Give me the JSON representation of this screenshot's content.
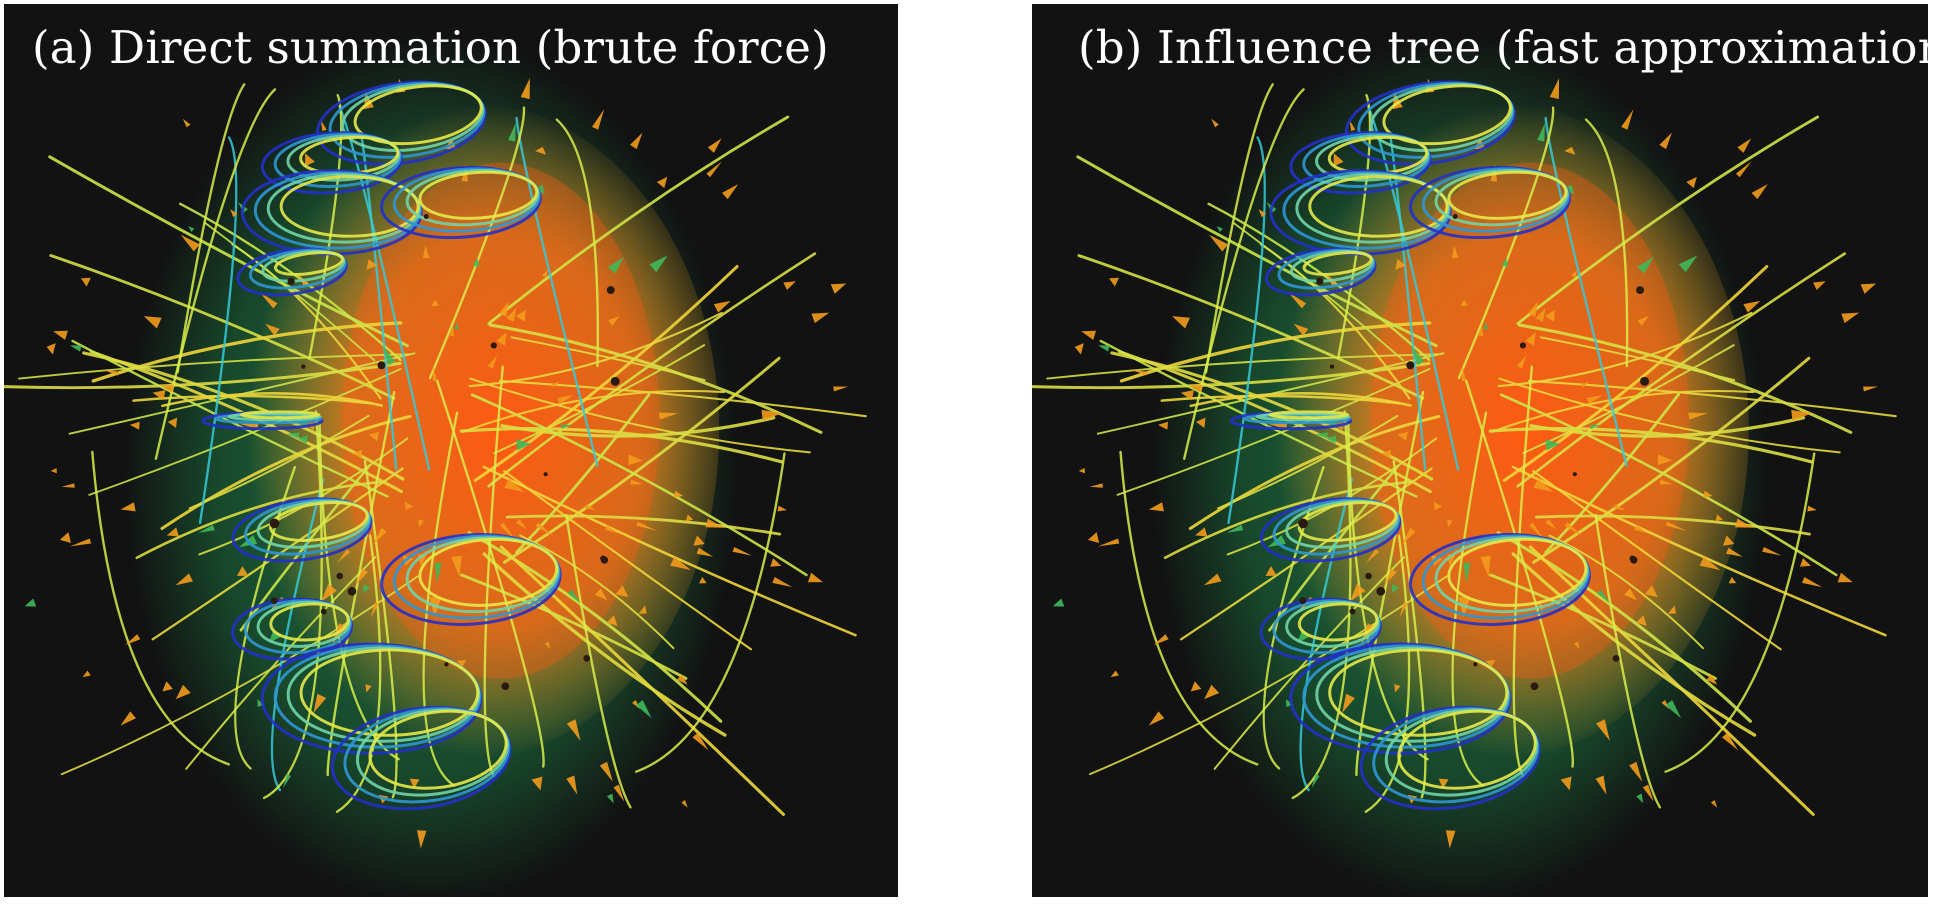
{
  "figure": {
    "panel_a": {
      "caption": "(a) Direct summation (brute force)"
    },
    "panel_b": {
      "caption": "(b) Influence tree (fast approximation)"
    }
  },
  "colors": {
    "background": "#ffffff",
    "panel_background": "#121212",
    "glow_core": "#ff5a14",
    "glow_outer": "#1f8a4c",
    "ring_blue": "#2330c8",
    "ring_cyan": "#35c9d8",
    "streamline_yellow": "#d9ef4a",
    "arrow_orange": "#f39b1c",
    "caption_text": "#ffffff"
  }
}
